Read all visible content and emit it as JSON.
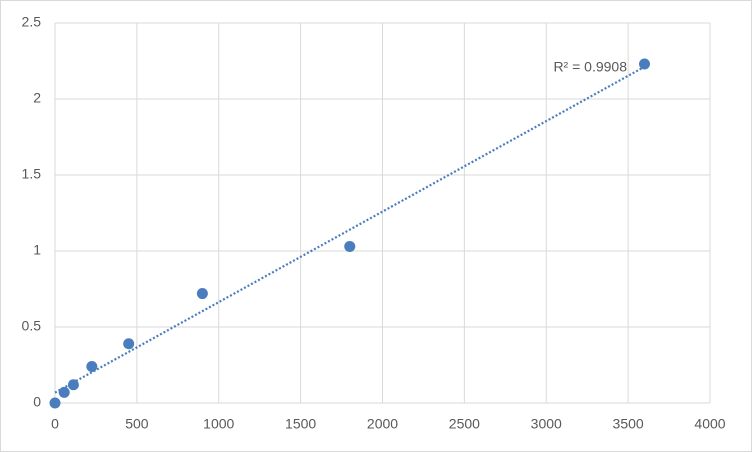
{
  "chart_data": {
    "type": "scatter",
    "x": [
      0,
      56.25,
      112.5,
      225,
      450,
      900,
      1800,
      3600
    ],
    "values": [
      0,
      0.07,
      0.12,
      0.24,
      0.39,
      0.72,
      1.03,
      2.23
    ],
    "color": "#4a7dbe",
    "xlim": [
      0,
      4000
    ],
    "xticks": [
      0,
      500,
      1000,
      1500,
      2000,
      2500,
      3000,
      3500,
      4000
    ],
    "ylim": [
      0,
      2.5
    ],
    "yticks": [
      0,
      0.5,
      1,
      1.5,
      2,
      2.5
    ],
    "grid": true,
    "trendline": "linear",
    "annotation": "R² = 0.9908"
  }
}
